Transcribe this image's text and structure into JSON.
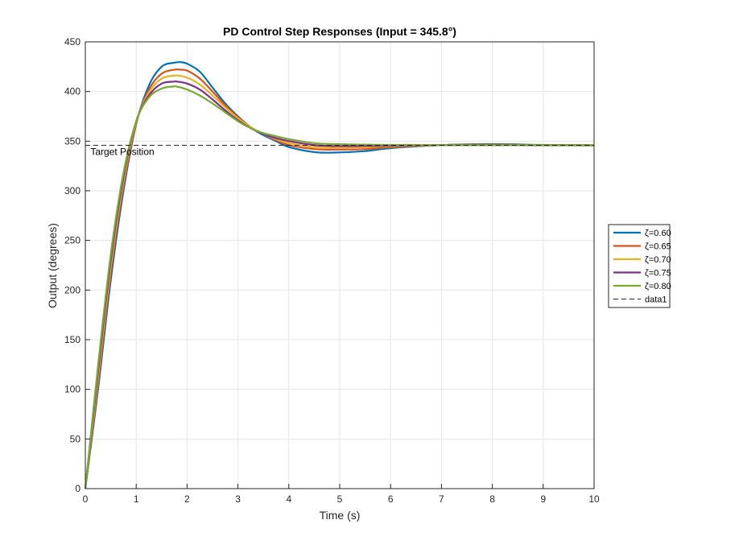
{
  "chart_data": {
    "type": "line",
    "title": "PD Control Step Responses (Input = 345.8°)",
    "xlabel": "Time (s)",
    "ylabel": "Output (degrees)",
    "xlim": [
      0,
      10
    ],
    "ylim": [
      0,
      450
    ],
    "xticks": [
      0,
      1,
      2,
      3,
      4,
      5,
      6,
      7,
      8,
      9,
      10
    ],
    "yticks": [
      0,
      50,
      100,
      150,
      200,
      250,
      300,
      350,
      400,
      450
    ],
    "grid": true,
    "legend_position": "outside-right",
    "annotation": {
      "text": "Target Position",
      "x": 0.1,
      "y": 336
    },
    "reference_line": {
      "name": "data1",
      "y": 345.8,
      "style": "dashed",
      "color": "#262626"
    },
    "series": [
      {
        "name": "ζ=0.60",
        "color": "#0072BD",
        "x": [
          0,
          0.25,
          0.5,
          0.75,
          1.0,
          1.25,
          1.5,
          1.75,
          1.88,
          2.0,
          2.25,
          2.5,
          2.75,
          3.0,
          3.25,
          3.5,
          3.75,
          4.0,
          4.5,
          4.9,
          5.5,
          6.0,
          7.0,
          8.0,
          9.0,
          10.0
        ],
        "y": [
          0,
          100,
          210,
          300,
          367,
          406,
          425,
          429,
          429.5,
          428,
          420,
          404,
          388,
          375,
          364,
          356,
          350,
          344,
          339,
          338.5,
          340,
          343,
          346,
          347,
          346.2,
          345.8
        ]
      },
      {
        "name": "ζ=0.65",
        "color": "#D95319",
        "x": [
          0,
          0.25,
          0.5,
          0.75,
          1.0,
          1.25,
          1.5,
          1.75,
          1.85,
          2.0,
          2.25,
          2.5,
          2.75,
          3.0,
          3.25,
          3.5,
          3.75,
          4.0,
          4.5,
          4.9,
          5.5,
          6.0,
          7.0,
          8.0,
          9.0,
          10.0
        ],
        "y": [
          0,
          106,
          218,
          305,
          368,
          402,
          418,
          422,
          422,
          421,
          413,
          400,
          386,
          374,
          364,
          357,
          351,
          346,
          342,
          341.5,
          342,
          344,
          346,
          346.5,
          346,
          345.8
        ]
      },
      {
        "name": "ζ=0.70",
        "color": "#EDB120",
        "x": [
          0,
          0.25,
          0.5,
          0.75,
          1.0,
          1.25,
          1.5,
          1.75,
          1.82,
          2.0,
          2.25,
          2.5,
          2.75,
          3.0,
          3.25,
          3.5,
          3.75,
          4.0,
          4.5,
          4.9,
          5.5,
          6.0,
          7.0,
          8.0,
          9.0,
          10.0
        ],
        "y": [
          0,
          112,
          224,
          310,
          369,
          399,
          413,
          416,
          416,
          414,
          407,
          396,
          384,
          373,
          364,
          357,
          352,
          348,
          344,
          343.5,
          344,
          345,
          346,
          346.2,
          345.9,
          345.8
        ]
      },
      {
        "name": "ζ=0.75",
        "color": "#7E2F8E",
        "x": [
          0,
          0.25,
          0.5,
          0.75,
          1.0,
          1.25,
          1.5,
          1.75,
          1.8,
          2.0,
          2.25,
          2.5,
          2.75,
          3.0,
          3.25,
          3.5,
          3.75,
          4.0,
          4.5,
          4.9,
          5.5,
          6.0,
          7.0,
          8.0,
          9.0,
          10.0
        ],
        "y": [
          0,
          118,
          230,
          314,
          370,
          396,
          408,
          410,
          410,
          408,
          402,
          392,
          381,
          371,
          363,
          357,
          353,
          350,
          346,
          345,
          345.2,
          345.5,
          346,
          346,
          345.8,
          345.8
        ]
      },
      {
        "name": "ζ=0.80",
        "color": "#77AC30",
        "x": [
          0,
          0.25,
          0.5,
          0.75,
          1.0,
          1.25,
          1.5,
          1.72,
          1.8,
          2.0,
          2.25,
          2.5,
          2.75,
          3.0,
          3.25,
          3.5,
          3.75,
          4.0,
          4.5,
          4.9,
          5.5,
          6.0,
          7.0,
          8.0,
          9.0,
          10.0
        ],
        "y": [
          0,
          124,
          236,
          318,
          370,
          394,
          403,
          405,
          405,
          402,
          396,
          388,
          379,
          370,
          363,
          358,
          355,
          352,
          348,
          347,
          346.5,
          346.2,
          346,
          345.9,
          345.8,
          345.8
        ]
      }
    ]
  }
}
